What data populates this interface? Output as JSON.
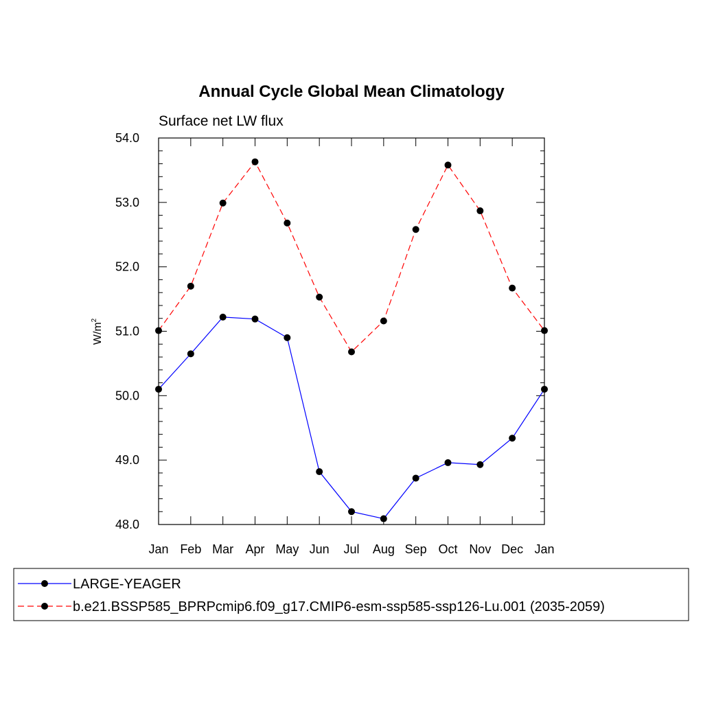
{
  "chart_data": {
    "type": "line",
    "title": "Annual Cycle Global Mean Climatology",
    "subtitle": "Surface net LW flux",
    "ylabel": "W/m",
    "ylabel_sup": "2",
    "xlabel": "",
    "categories": [
      "Jan",
      "Feb",
      "Mar",
      "Apr",
      "May",
      "Jun",
      "Jul",
      "Aug",
      "Sep",
      "Oct",
      "Nov",
      "Dec",
      "Jan"
    ],
    "ylim": [
      48.0,
      54.0
    ],
    "yticks": [
      "48.0",
      "49.0",
      "50.0",
      "51.0",
      "52.0",
      "53.0",
      "54.0"
    ],
    "grid": false,
    "legend_position": "bottom",
    "series": [
      {
        "name": "LARGE-YEAGER",
        "color": "#0000ff",
        "dash": "solid",
        "values": [
          50.1,
          50.65,
          51.22,
          51.19,
          50.9,
          48.82,
          48.2,
          48.09,
          48.72,
          48.96,
          48.93,
          49.34,
          50.1
        ]
      },
      {
        "name": "b.e21.BSSP585_BPRPcmip6.f09_g17.CMIP6-esm-ssp585-ssp126-Lu.001 (2035-2059)",
        "color": "#ff0000",
        "dash": "dashed",
        "values": [
          51.01,
          51.7,
          52.99,
          53.63,
          52.68,
          51.53,
          50.68,
          51.16,
          52.58,
          53.58,
          52.87,
          51.67,
          51.01
        ]
      }
    ]
  }
}
